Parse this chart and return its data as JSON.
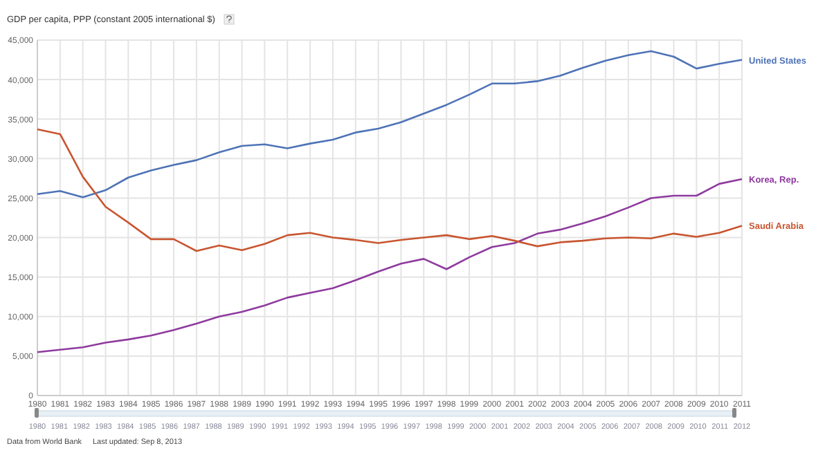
{
  "chart_data": {
    "type": "line",
    "title": "GDP per capita, PPP (constant 2005 international $)",
    "x": [
      1980,
      1981,
      1982,
      1983,
      1984,
      1985,
      1986,
      1987,
      1988,
      1989,
      1990,
      1991,
      1992,
      1993,
      1994,
      1995,
      1996,
      1997,
      1998,
      1999,
      2000,
      2001,
      2002,
      2003,
      2004,
      2005,
      2006,
      2007,
      2008,
      2009,
      2010,
      2011
    ],
    "series": [
      {
        "name": "United States",
        "color": "#4e73b7",
        "values": [
          25500,
          25900,
          25100,
          26000,
          27600,
          28500,
          29200,
          29800,
          30800,
          31600,
          31800,
          31300,
          31900,
          32400,
          33300,
          33800,
          34600,
          35700,
          36800,
          38100,
          39500,
          39500,
          39800,
          40500,
          41500,
          42400,
          43100,
          43600,
          42900,
          41400,
          42000,
          42500
        ]
      },
      {
        "name": "Korea, Rep.",
        "color": "#8e3a9e",
        "values": [
          5500,
          5800,
          6100,
          6700,
          7100,
          7600,
          8300,
          9100,
          10000,
          10600,
          11400,
          12400,
          13000,
          13600,
          14600,
          15700,
          16700,
          17300,
          16000,
          17500,
          18800,
          19300,
          20500,
          21000,
          21800,
          22700,
          23800,
          25000,
          25300,
          25300,
          26800,
          27400
        ]
      },
      {
        "name": "Saudi Arabia",
        "color": "#c8552f",
        "values": [
          33700,
          33100,
          27700,
          23900,
          21900,
          19800,
          19800,
          18300,
          19000,
          18400,
          19200,
          20300,
          20600,
          20000,
          19700,
          19300,
          19700,
          20000,
          20300,
          19800,
          20200,
          19600,
          18900,
          19400,
          19600,
          19900,
          20000,
          19900,
          20500,
          20100,
          20600,
          21500
        ]
      }
    ],
    "xlim": [
      1980,
      2011
    ],
    "xticks": [
      1980,
      1981,
      1982,
      1983,
      1984,
      1985,
      1986,
      1987,
      1988,
      1989,
      1990,
      1991,
      1992,
      1993,
      1994,
      1995,
      1996,
      1997,
      1998,
      1999,
      2000,
      2001,
      2002,
      2003,
      2004,
      2005,
      2006,
      2007,
      2008,
      2009,
      2010,
      2011
    ],
    "x2lim": [
      1980,
      2012
    ],
    "x2ticks": [
      1980,
      1981,
      1982,
      1983,
      1984,
      1985,
      1986,
      1987,
      1988,
      1989,
      1990,
      1991,
      1992,
      1993,
      1994,
      1995,
      1996,
      1997,
      1998,
      1999,
      2000,
      2001,
      2002,
      2003,
      2004,
      2005,
      2006,
      2007,
      2008,
      2009,
      2010,
      2011,
      2012
    ],
    "ylim": [
      0,
      45000
    ],
    "yticks": [
      {
        "value": 0,
        "label": "0"
      },
      {
        "value": 5000,
        "label": "5,000"
      },
      {
        "value": 10000,
        "label": "10,000"
      },
      {
        "value": 15000,
        "label": "15,000"
      },
      {
        "value": 20000,
        "label": "20,000"
      },
      {
        "value": 25000,
        "label": "25,000"
      },
      {
        "value": 30000,
        "label": "30,000"
      },
      {
        "value": 35000,
        "label": "35,000"
      },
      {
        "value": 40000,
        "label": "40,000"
      },
      {
        "value": 45000,
        "label": "45,000"
      }
    ],
    "grid": true,
    "marker": "none",
    "line_style": "solid",
    "annotations": [
      "Data from World Bank",
      "Last updated: Sep 8, 2013"
    ]
  }
}
